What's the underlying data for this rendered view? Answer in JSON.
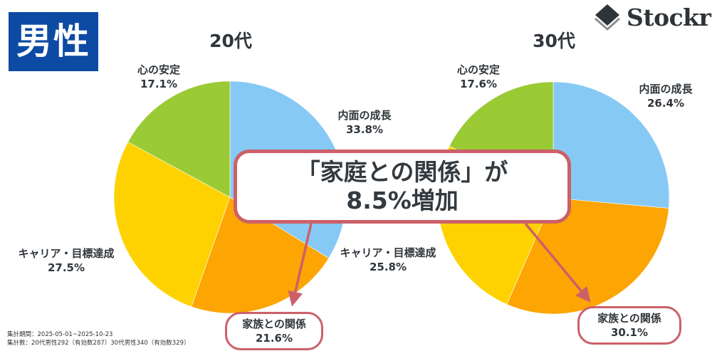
{
  "header": {
    "gender_label": "男性",
    "logo_text": "Stockr",
    "logo_icon": "stacked-diamond-icon"
  },
  "callout": {
    "line1": "「家庭との関係」が",
    "line2": "8.5%増加",
    "border_color": "#cc6068"
  },
  "footnote": {
    "period": "集計期間：2025-05-01~2025-10-23",
    "count": "集計数：20代男性292（有効数287）30代男性340（有効数329）"
  },
  "colors": {
    "inner_growth": "#87c9f5",
    "family": "#fca503",
    "career": "#fed200",
    "peace_of_mind": "#9aca34",
    "badge": "#0d4aa4",
    "arrow": "#cc6068"
  },
  "chart_data": [
    {
      "type": "pie",
      "title": "20代",
      "categories": [
        "内面の成長",
        "家族との関係",
        "キャリア・目標達成",
        "心の安定"
      ],
      "values": [
        33.8,
        21.6,
        27.5,
        17.1
      ],
      "labels": [
        "33.8%",
        "21.6%",
        "27.5%",
        "17.1%"
      ],
      "start_angle": "12 o'clock",
      "direction": "clockwise",
      "legend": "none (direct labels)"
    },
    {
      "type": "pie",
      "title": "30代",
      "categories": [
        "内面の成長",
        "家族との関係",
        "キャリア・目標達成",
        "心の安定"
      ],
      "values": [
        26.4,
        30.1,
        25.8,
        17.6
      ],
      "labels": [
        "26.4%",
        "30.1%",
        "25.8%",
        "17.6%"
      ],
      "start_angle": "12 o'clock",
      "direction": "clockwise",
      "legend": "none (direct labels)"
    }
  ]
}
